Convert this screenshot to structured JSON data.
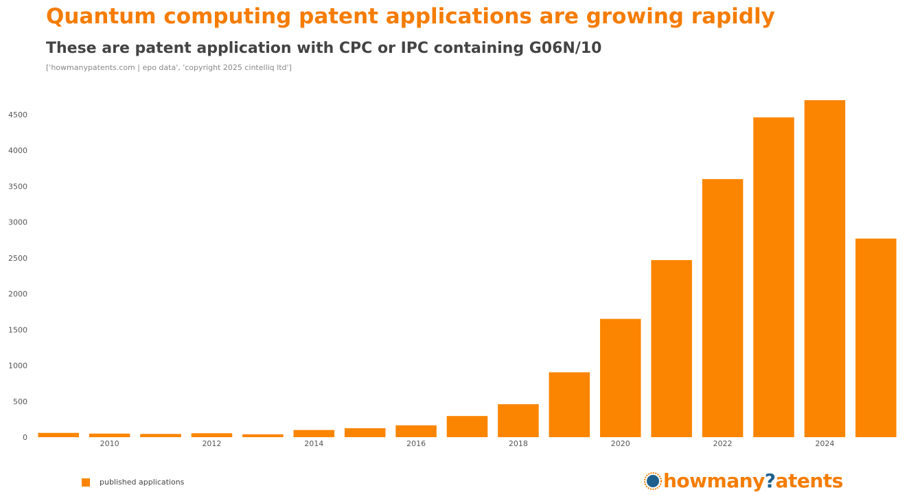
{
  "title": "Quantum computing patent applications are growing rapidly",
  "subtitle": "These are patent application with CPC or IPC containing G06N/10",
  "source": "['howmanypatents.com | epo data', 'copyright 2025 cintelliq ltd']",
  "legend": {
    "label": "published applications",
    "color": "#fb8500"
  },
  "brand": {
    "pre": "howmany",
    "q": "?",
    "post": "atents",
    "icon": "globe-logo-icon",
    "primary_color": "#f57c00",
    "accent_color": "#1f5f8b"
  },
  "chart_data": {
    "type": "bar",
    "x": [
      2009,
      2010,
      2011,
      2012,
      2013,
      2014,
      2015,
      2016,
      2017,
      2018,
      2019,
      2020,
      2021,
      2022,
      2023,
      2024,
      2025
    ],
    "x_tick_labels": [
      "2010",
      "2012",
      "2014",
      "2016",
      "2018",
      "2020",
      "2022",
      "2024"
    ],
    "x_tick_values": [
      2010,
      2012,
      2014,
      2016,
      2018,
      2020,
      2022,
      2024
    ],
    "series": [
      {
        "name": "published applications",
        "values": [
          60,
          50,
          45,
          55,
          40,
          100,
          125,
          165,
          295,
          460,
          905,
          1650,
          2470,
          3600,
          4460,
          4700,
          2770
        ]
      }
    ],
    "y_ticks": [
      0,
      500,
      1000,
      1500,
      2000,
      2500,
      3000,
      3500,
      4000,
      4500
    ],
    "ylim": [
      0,
      4700
    ],
    "color": "#fb8500",
    "grid": false,
    "legend_position": "bottom-left"
  }
}
